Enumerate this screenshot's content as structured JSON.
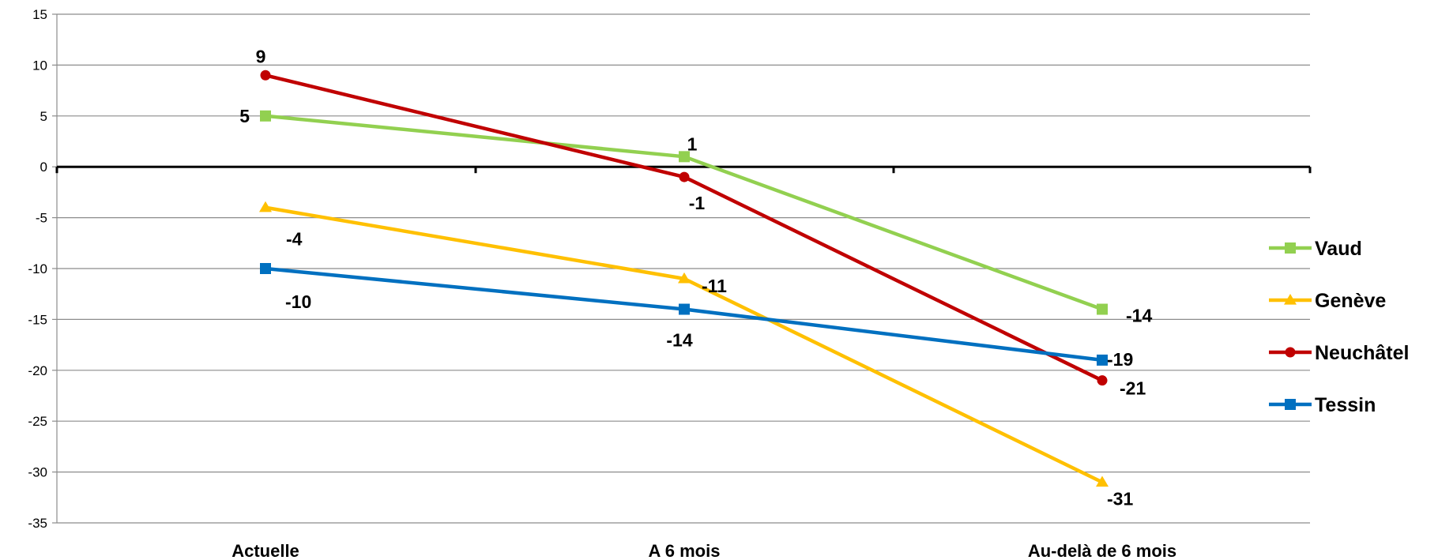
{
  "chart_data": {
    "type": "line",
    "title": "",
    "xlabel": "",
    "ylabel": "",
    "categories": [
      "Actuelle",
      "A 6 mois",
      "Au-delà de 6 mois"
    ],
    "ylim": [
      -35,
      15
    ],
    "yticks": [
      15,
      10,
      5,
      0,
      -5,
      -10,
      -15,
      -20,
      -25,
      -30,
      -35
    ],
    "grid": "horizontal",
    "legend_position": "right",
    "series": [
      {
        "name": "Vaud",
        "values": [
          5,
          1,
          -14
        ],
        "color": "#92D050",
        "marker": "square"
      },
      {
        "name": "Genève",
        "values": [
          -4,
          -11,
          -31
        ],
        "color": "#FFC000",
        "marker": "triangle"
      },
      {
        "name": "Neuchâtel",
        "values": [
          9,
          -1,
          -21
        ],
        "color": "#C00000",
        "marker": "circle"
      },
      {
        "name": "Tessin",
        "values": [
          -10,
          -14,
          -19
        ],
        "color": "#0070C0",
        "marker": "square"
      }
    ]
  }
}
